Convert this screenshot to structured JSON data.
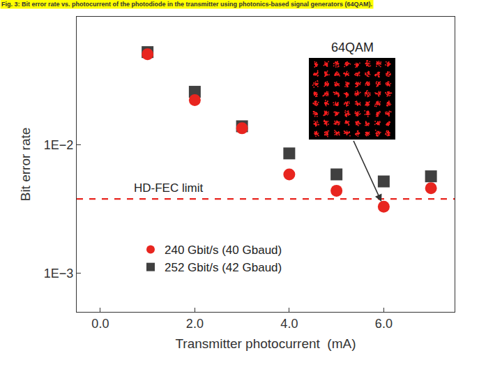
{
  "chart_data": {
    "type": "scatter",
    "title": "Fig. 3: Bit error rate vs. photocurrent of the photodiode in the transmitter using photonics-based signal generators (64QAM).",
    "x_label": "Transmitter photocurrent  (mA)",
    "y_label": "Bit error rate",
    "x": [
      1,
      2,
      3,
      4,
      5,
      6,
      7
    ],
    "series": [
      {
        "name": "240 Gbit/s (40 Gbaud)",
        "color": "#e8251f",
        "marker": "circle",
        "values": [
          0.051,
          0.0224,
          0.0135,
          0.0059,
          0.0044,
          0.0033,
          0.0046
        ]
      },
      {
        "name": "252 Gbit/s (42 Gbaud)",
        "color": "#404040",
        "marker": "square",
        "values": [
          0.053,
          0.026,
          0.014,
          0.0086,
          0.0059,
          0.0052,
          0.0057
        ]
      }
    ],
    "xlim": [
      -0.5,
      7.5
    ],
    "xticks": [
      {
        "value": 0,
        "label": "0.0"
      },
      {
        "value": 2,
        "label": "2.0"
      },
      {
        "value": 4,
        "label": "4.0"
      },
      {
        "value": 6,
        "label": "6.0"
      }
    ],
    "ylim": [
      0.0005,
      0.1
    ],
    "yticks": [
      {
        "value": 0.001,
        "label": "1E−3"
      },
      {
        "value": 0.01,
        "label": "1E−2"
      }
    ],
    "log": "y",
    "grid": false,
    "legend": "lower left",
    "reference_line": {
      "label": "HD-FEC limit",
      "value": 0.0038,
      "color": "#e8251f",
      "line_style": "dash"
    },
    "annotations": [
      {
        "text": "64QAM",
        "x": 6,
        "y": 0.0033
      }
    ]
  }
}
